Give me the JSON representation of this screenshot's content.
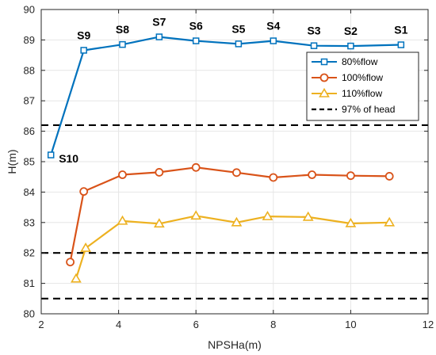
{
  "chart_data": {
    "type": "line",
    "title": "",
    "xlabel": "NPSHa(m)",
    "ylabel": "H(m)",
    "xlim": [
      2,
      12
    ],
    "ylim": [
      80,
      90
    ],
    "xticks": [
      "2",
      "4",
      "6",
      "8",
      "10",
      "12"
    ],
    "yticks": [
      "80",
      "81",
      "82",
      "83",
      "84",
      "85",
      "86",
      "87",
      "88",
      "89",
      "90"
    ],
    "grid": true,
    "legend_position": "top-right",
    "series": [
      {
        "name": "80%flow",
        "color": "#0072BD",
        "marker": "square",
        "x": [
          2.25,
          3.1,
          4.1,
          5.05,
          6.0,
          7.1,
          8.0,
          9.05,
          10.0,
          11.3
        ],
        "y": [
          85.22,
          88.66,
          88.85,
          89.1,
          88.97,
          88.87,
          88.97,
          88.81,
          88.8,
          88.84
        ]
      },
      {
        "name": "100%flow",
        "color": "#D95319",
        "marker": "circle",
        "x": [
          2.75,
          3.1,
          4.1,
          5.05,
          6.0,
          7.05,
          8.0,
          9.0,
          10.0,
          11.0
        ],
        "y": [
          81.7,
          84.02,
          84.57,
          84.65,
          84.81,
          84.64,
          84.48,
          84.57,
          84.54,
          84.52
        ]
      },
      {
        "name": "110%flow",
        "color": "#EDB120",
        "marker": "triangle",
        "x": [
          2.9,
          3.15,
          4.1,
          5.05,
          6.0,
          7.05,
          7.85,
          8.9,
          10.0,
          11.0
        ],
        "y": [
          81.15,
          82.16,
          83.05,
          82.96,
          83.22,
          83.0,
          83.2,
          83.18,
          82.97,
          83.0
        ]
      },
      {
        "name": "97% of head",
        "color": "#000000",
        "style": "dashed",
        "hlines": [
          86.2,
          82.0,
          80.5
        ]
      }
    ],
    "annotations": [
      {
        "text": "S10",
        "x": 2.25,
        "y": 85.22
      },
      {
        "text": "S9",
        "x": 3.1,
        "y": 88.66
      },
      {
        "text": "S8",
        "x": 4.1,
        "y": 88.85
      },
      {
        "text": "S7",
        "x": 5.05,
        "y": 89.1
      },
      {
        "text": "S6",
        "x": 6.0,
        "y": 88.97
      },
      {
        "text": "S5",
        "x": 7.1,
        "y": 88.87
      },
      {
        "text": "S4",
        "x": 8.0,
        "y": 88.97
      },
      {
        "text": "S3",
        "x": 9.05,
        "y": 88.81
      },
      {
        "text": "S2",
        "x": 10.0,
        "y": 88.8
      },
      {
        "text": "S1",
        "x": 11.3,
        "y": 88.84
      }
    ]
  }
}
